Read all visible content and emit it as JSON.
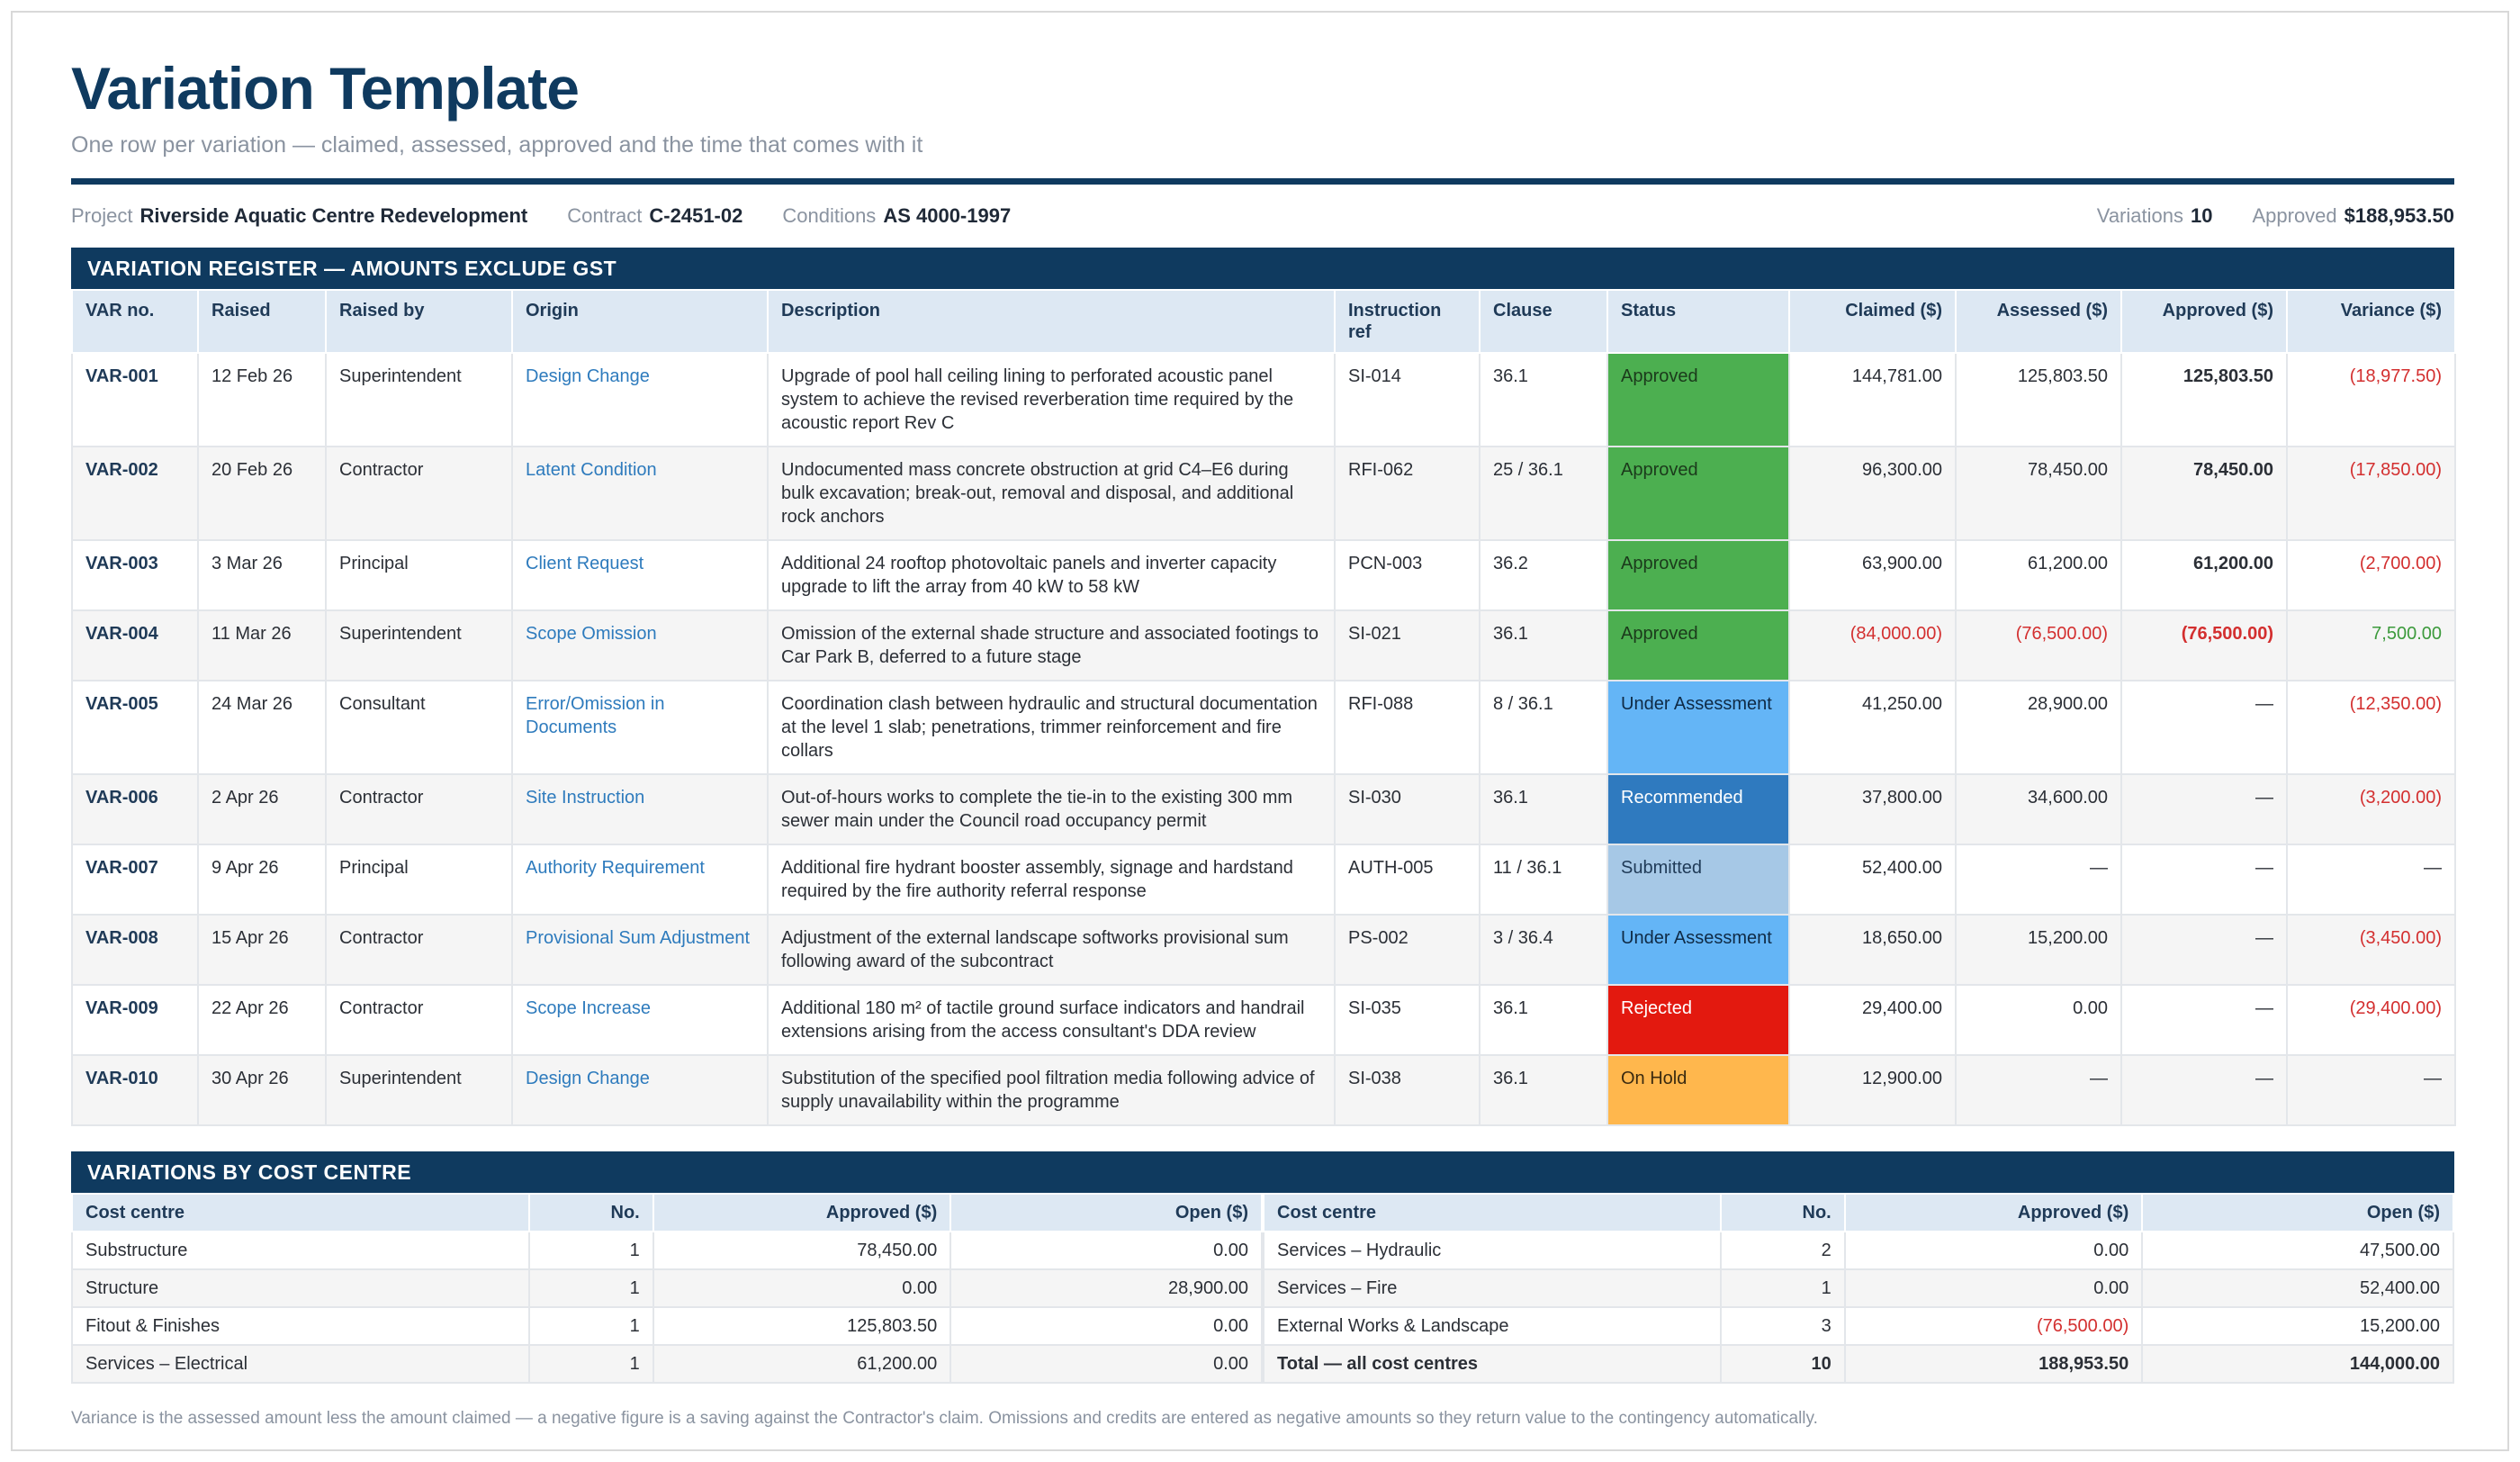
{
  "header": {
    "title": "Variation Template",
    "subtitle": "One row per variation — claimed, assessed, approved and the time that comes with it"
  },
  "meta": {
    "project_label": "Project",
    "project_value": "Riverside Aquatic Centre Redevelopment",
    "contract_label": "Contract",
    "contract_value": "C-2451-02",
    "conditions_label": "Conditions",
    "conditions_value": "AS 4000-1997",
    "variations_label": "Variations",
    "variations_value": "10",
    "approved_label": "Approved",
    "approved_value": "$188,953.50"
  },
  "register": {
    "title": "VARIATION REGISTER — AMOUNTS EXCLUDE GST",
    "columns": [
      "VAR no.",
      "Raised",
      "Raised by",
      "Origin",
      "Description",
      "Instruction ref",
      "Clause",
      "Status",
      "Claimed ($)",
      "Assessed ($)",
      "Approved ($)",
      "Variance ($)"
    ],
    "rows": [
      {
        "var": "VAR-001",
        "raised": "12 Feb 26",
        "by": "Superintendent",
        "origin": "Design Change",
        "desc": "Upgrade of pool hall ceiling lining to perforated acoustic panel system to achieve the revised reverberation time required by the acoustic report Rev C",
        "ref": "SI-014",
        "clause": "36.1",
        "status": "Approved",
        "status_key": "approved",
        "claimed": "144,781.00",
        "assessed": "125,803.50",
        "approved": "125,803.50",
        "variance": "(18,977.50)"
      },
      {
        "var": "VAR-002",
        "raised": "20 Feb 26",
        "by": "Contractor",
        "origin": "Latent Condition",
        "desc": "Undocumented mass concrete obstruction at grid C4–E6 during bulk excavation; break-out, removal and disposal, and additional rock anchors",
        "ref": "RFI-062",
        "clause": "25 / 36.1",
        "status": "Approved",
        "status_key": "approved",
        "claimed": "96,300.00",
        "assessed": "78,450.00",
        "approved": "78,450.00",
        "variance": "(17,850.00)"
      },
      {
        "var": "VAR-003",
        "raised": "3 Mar 26",
        "by": "Principal",
        "origin": "Client Request",
        "desc": "Additional 24 rooftop photovoltaic panels and inverter capacity upgrade to lift the array from 40 kW to 58 kW",
        "ref": "PCN-003",
        "clause": "36.2",
        "status": "Approved",
        "status_key": "approved",
        "claimed": "63,900.00",
        "assessed": "61,200.00",
        "approved": "61,200.00",
        "variance": "(2,700.00)"
      },
      {
        "var": "VAR-004",
        "raised": "11 Mar 26",
        "by": "Superintendent",
        "origin": "Scope Omission",
        "desc": "Omission of the external shade structure and associated footings to Car Park B, deferred to a future stage",
        "ref": "SI-021",
        "clause": "36.1",
        "status": "Approved",
        "status_key": "approved",
        "claimed": "(84,000.00)",
        "assessed": "(76,500.00)",
        "approved": "(76,500.00)",
        "variance": "7,500.00"
      },
      {
        "var": "VAR-005",
        "raised": "24 Mar 26",
        "by": "Consultant",
        "origin": "Error/Omission in Documents",
        "desc": "Coordination clash between hydraulic and structural documentation at the level 1 slab; penetrations, trimmer reinforcement and fire collars",
        "ref": "RFI-088",
        "clause": "8 / 36.1",
        "status": "Under Assessment",
        "status_key": "under",
        "claimed": "41,250.00",
        "assessed": "28,900.00",
        "approved": "—",
        "variance": "(12,350.00)"
      },
      {
        "var": "VAR-006",
        "raised": "2 Apr 26",
        "by": "Contractor",
        "origin": "Site Instruction",
        "desc": "Out-of-hours works to complete the tie-in to the existing 300 mm sewer main under the Council road occupancy permit",
        "ref": "SI-030",
        "clause": "36.1",
        "status": "Recommended",
        "status_key": "recommended",
        "claimed": "37,800.00",
        "assessed": "34,600.00",
        "approved": "—",
        "variance": "(3,200.00)"
      },
      {
        "var": "VAR-007",
        "raised": "9 Apr 26",
        "by": "Principal",
        "origin": "Authority Requirement",
        "desc": "Additional fire hydrant booster assembly, signage and hardstand required by the fire authority referral response",
        "ref": "AUTH-005",
        "clause": "11 / 36.1",
        "status": "Submitted",
        "status_key": "submitted",
        "claimed": "52,400.00",
        "assessed": "—",
        "approved": "—",
        "variance": "—"
      },
      {
        "var": "VAR-008",
        "raised": "15 Apr 26",
        "by": "Contractor",
        "origin": "Provisional Sum Adjustment",
        "desc": "Adjustment of the external landscape softworks provisional sum following award of the subcontract",
        "ref": "PS-002",
        "clause": "3 / 36.4",
        "status": "Under Assessment",
        "status_key": "under",
        "claimed": "18,650.00",
        "assessed": "15,200.00",
        "approved": "—",
        "variance": "(3,450.00)"
      },
      {
        "var": "VAR-009",
        "raised": "22 Apr 26",
        "by": "Contractor",
        "origin": "Scope Increase",
        "desc": "Additional 180 m² of tactile ground surface indicators and handrail extensions arising from the access consultant's DDA review",
        "ref": "SI-035",
        "clause": "36.1",
        "status": "Rejected",
        "status_key": "rejected",
        "claimed": "29,400.00",
        "assessed": "0.00",
        "approved": "—",
        "variance": "(29,400.00)"
      },
      {
        "var": "VAR-010",
        "raised": "30 Apr 26",
        "by": "Superintendent",
        "origin": "Design Change",
        "desc": "Substitution of the specified pool filtration media following advice of supply unavailability within the programme",
        "ref": "SI-038",
        "clause": "36.1",
        "status": "On Hold",
        "status_key": "hold",
        "claimed": "12,900.00",
        "assessed": "—",
        "approved": "—",
        "variance": "—"
      }
    ]
  },
  "cost_centre": {
    "title": "VARIATIONS BY COST CENTRE",
    "columns": [
      "Cost centre",
      "No.",
      "Approved ($)",
      "Open ($)"
    ],
    "left": [
      {
        "name": "Substructure",
        "no": "1",
        "approved": "78,450.00",
        "open": "0.00"
      },
      {
        "name": "Structure",
        "no": "1",
        "approved": "0.00",
        "open": "28,900.00"
      },
      {
        "name": "Fitout & Finishes",
        "no": "1",
        "approved": "125,803.50",
        "open": "0.00"
      },
      {
        "name": "Services – Electrical",
        "no": "1",
        "approved": "61,200.00",
        "open": "0.00"
      }
    ],
    "right": [
      {
        "name": "Services – Hydraulic",
        "no": "2",
        "approved": "0.00",
        "open": "47,500.00"
      },
      {
        "name": "Services – Fire",
        "no": "1",
        "approved": "0.00",
        "open": "52,400.00"
      },
      {
        "name": "External Works & Landscape",
        "no": "3",
        "approved": "(76,500.00)",
        "open": "15,200.00"
      },
      {
        "name": "Total — all cost centres",
        "no": "10",
        "approved": "188,953.50",
        "open": "144,000.00",
        "total": true
      }
    ]
  },
  "footnote": "Variance is the assessed amount less the amount claimed — a negative figure is a saving against the Contractor's claim. Omissions and credits are entered as negative amounts so they return value to the contingency automatically."
}
